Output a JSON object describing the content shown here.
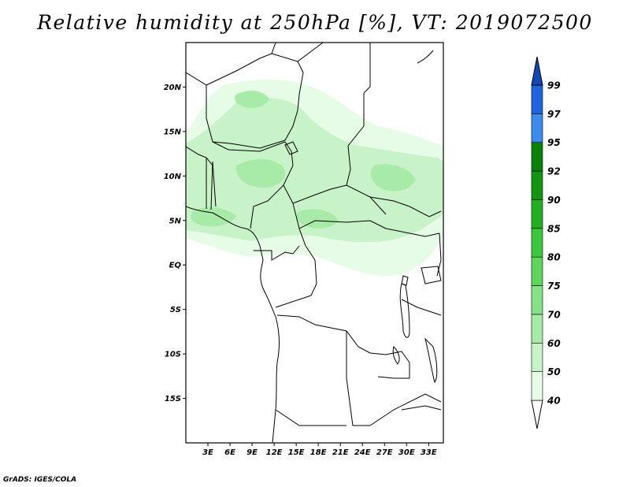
{
  "title": "Relative humidity at 250hPa [%], VT: 2019072500",
  "credit": "GrADS: IGES/COLA",
  "map": {
    "lon_range": [
      0,
      35
    ],
    "lat_range": [
      -20,
      25
    ],
    "lat_ticks": [
      {
        "value": 20,
        "label": "20N"
      },
      {
        "value": 15,
        "label": "15N"
      },
      {
        "value": 10,
        "label": "10N"
      },
      {
        "value": 5,
        "label": "5N"
      },
      {
        "value": 0,
        "label": "EQ"
      },
      {
        "value": -5,
        "label": "5S"
      },
      {
        "value": -10,
        "label": "10S"
      },
      {
        "value": -15,
        "label": "15S"
      }
    ],
    "lon_ticks": [
      {
        "value": 3,
        "label": "3E"
      },
      {
        "value": 6,
        "label": "6E"
      },
      {
        "value": 9,
        "label": "9E"
      },
      {
        "value": 12,
        "label": "12E"
      },
      {
        "value": 15,
        "label": "15E"
      },
      {
        "value": 18,
        "label": "18E"
      },
      {
        "value": 21,
        "label": "21E"
      },
      {
        "value": 24,
        "label": "24E"
      },
      {
        "value": 27,
        "label": "27E"
      },
      {
        "value": 30,
        "label": "30E"
      },
      {
        "value": 33,
        "label": "33E"
      }
    ]
  },
  "colorbar": {
    "levels": [
      {
        "label": "40",
        "color": "#ffffff"
      },
      {
        "label": "50",
        "color": "#e6fce6"
      },
      {
        "label": "60",
        "color": "#c8f2c8"
      },
      {
        "label": "70",
        "color": "#a8eaa8"
      },
      {
        "label": "75",
        "color": "#86e286"
      },
      {
        "label": "80",
        "color": "#5ed65e"
      },
      {
        "label": "85",
        "color": "#3cc83c"
      },
      {
        "label": "90",
        "color": "#22b022"
      },
      {
        "label": "92",
        "color": "#129612"
      },
      {
        "label": "95",
        "color": "#0a820a"
      },
      {
        "label": "97",
        "color": "#3c8cf0"
      },
      {
        "label": "99",
        "color": "#1e64dc"
      }
    ],
    "top_arrow_color": "#1446b4",
    "bottom_arrow_color": "#ffffff"
  },
  "colors": {
    "humid_light": "#e6fce6",
    "humid_mid": "#c8f2c8",
    "humid_strong": "#a8eaa8"
  }
}
